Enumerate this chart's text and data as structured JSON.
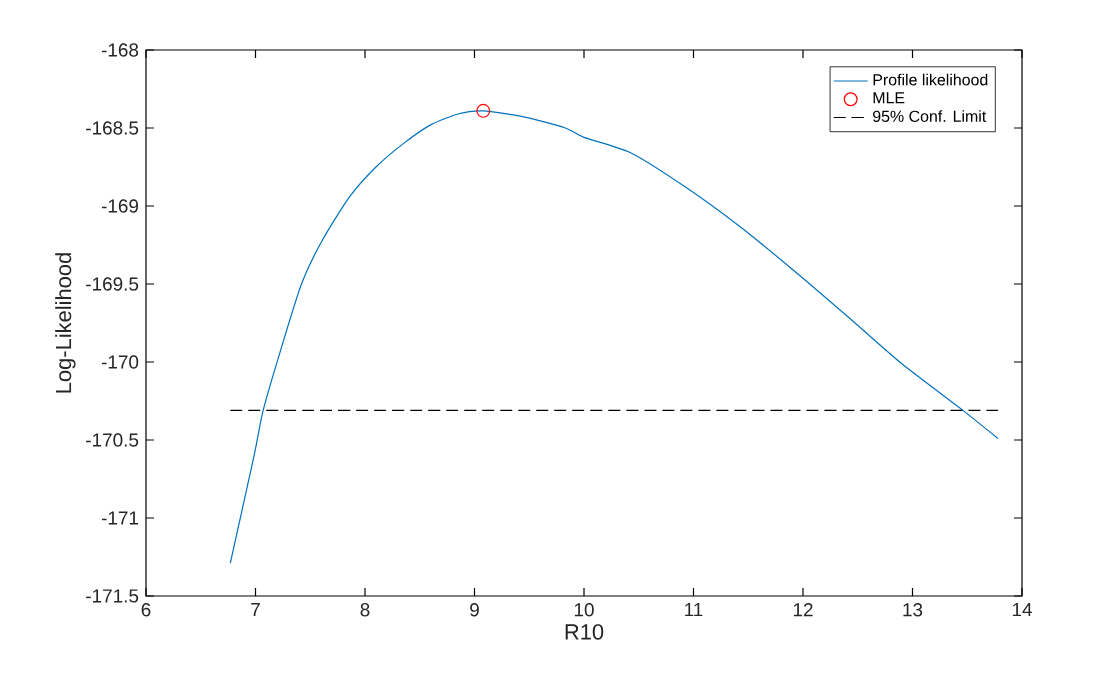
{
  "chart_data": {
    "type": "line",
    "xlabel": "R10",
    "ylabel": "Log-Likelihood",
    "xlim": [
      6,
      14
    ],
    "ylim": [
      -171.5,
      -168
    ],
    "xticks": [
      6,
      7,
      8,
      9,
      10,
      11,
      12,
      13,
      14
    ],
    "yticks": [
      -171.5,
      -171,
      -170.5,
      -170,
      -169.5,
      -169,
      -168.5,
      -168
    ],
    "legend": "top right",
    "series": [
      {
        "name": "Profile likelihood",
        "color": "#0072bd",
        "line_style": "solid",
        "marker": "none",
        "x": [
          6.77,
          6.99,
          7.07,
          7.24,
          7.42,
          7.61,
          7.86,
          8.1,
          8.35,
          8.6,
          8.85,
          9.08,
          9.46,
          9.83,
          10.0,
          10.43,
          10.93,
          11.42,
          11.91,
          12.41,
          12.9,
          13.46,
          13.78
        ],
        "values": [
          -171.29,
          -170.59,
          -170.31,
          -169.9,
          -169.5,
          -169.22,
          -168.94,
          -168.75,
          -168.6,
          -168.48,
          -168.41,
          -168.39,
          -168.43,
          -168.5,
          -168.56,
          -168.66,
          -168.88,
          -169.13,
          -169.41,
          -169.71,
          -170.01,
          -170.31,
          -170.49
        ]
      },
      {
        "name": "MLE",
        "type": "scatter",
        "color": "#ff0000",
        "marker": "circle",
        "x": [
          9.08
        ],
        "values": [
          -168.39
        ]
      },
      {
        "name": "95% Conf. Limit",
        "color": "#000000",
        "line_style": "dashed",
        "marker": "none",
        "x": [
          6.77,
          13.78
        ],
        "values": [
          -170.31,
          -170.31
        ]
      }
    ]
  }
}
